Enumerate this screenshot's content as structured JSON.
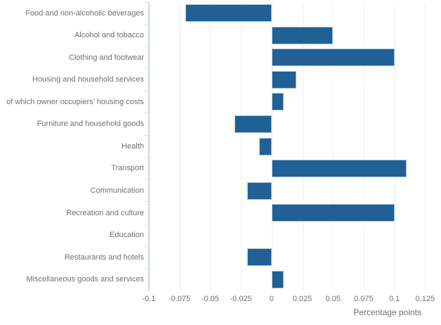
{
  "chart_data": {
    "type": "bar",
    "orientation": "horizontal",
    "title": "",
    "xlabel": "Percentage points",
    "ylabel": "",
    "categories": [
      "Food and non-alcoholic beverages",
      "Alcohol and tobacco",
      "Clothing and footwear",
      "Housing and household services",
      "of which owner occupiers’ housing costs",
      "Furniture and household goods",
      "Health",
      "Transport",
      "Communication",
      "Recreation and culture",
      "Education",
      "Restaurants and hotels",
      "Miscellaneous goods and services"
    ],
    "values": [
      -0.07,
      0.05,
      0.1,
      0.02,
      0.01,
      -0.03,
      -0.01,
      0.11,
      -0.02,
      0.1,
      0,
      -0.02,
      0.01
    ],
    "xticks": [
      -0.1,
      -0.075,
      -0.05,
      -0.025,
      0,
      0.025,
      0.05,
      0.075,
      0.1,
      0.125
    ],
    "xtick_labels": [
      "-0.1",
      "-0.075",
      "-0.05",
      "-0.025",
      "0",
      "0.025",
      "0.05",
      "0.075",
      "0.1",
      "0.125"
    ],
    "xlim": [
      -0.1,
      0.125
    ],
    "grid": "vertical-only",
    "legend": "none",
    "colors": {
      "bar_fill": "#206095",
      "bar_border": "#a9c1d8",
      "gridline": "#eeeeee",
      "axis_line": "#ccd5ea",
      "axis_tick": "#d3daec",
      "label_text": "#707070",
      "background": "#ffffff"
    }
  }
}
